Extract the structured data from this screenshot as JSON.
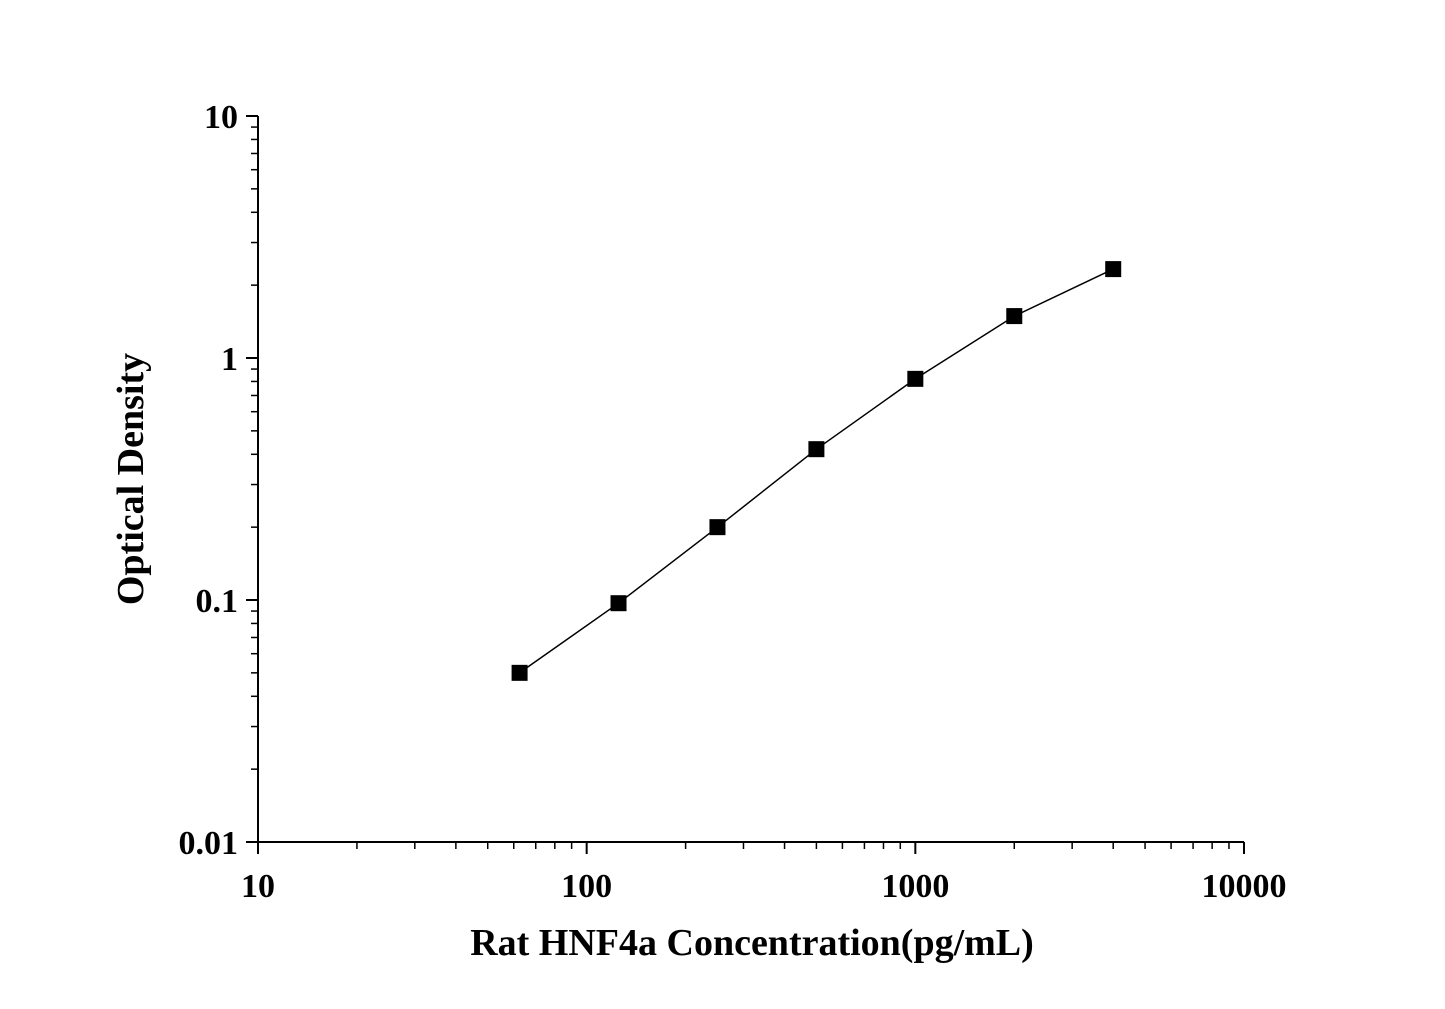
{
  "chart_data": {
    "type": "line",
    "title": "",
    "xlabel": "Rat HNF4a Concentration(pg/mL)",
    "ylabel": "Optical Density",
    "xscale": "log",
    "yscale": "log",
    "xlim": [
      10,
      10000
    ],
    "ylim": [
      0.01,
      10
    ],
    "xticks": [
      {
        "value": 10,
        "label": "10"
      },
      {
        "value": 100,
        "label": "100"
      },
      {
        "value": 1000,
        "label": "1000"
      },
      {
        "value": 10000,
        "label": "10000"
      }
    ],
    "yticks": [
      {
        "value": 0.01,
        "label": "0.01"
      },
      {
        "value": 0.1,
        "label": "0.1"
      },
      {
        "value": 1,
        "label": "1"
      },
      {
        "value": 10,
        "label": "10"
      }
    ],
    "grid": false,
    "marker": "square",
    "color": "#000000",
    "series": [
      {
        "x": [
          62.5,
          125,
          250,
          500,
          1000,
          2000,
          4000
        ],
        "y": [
          0.05,
          0.097,
          0.2,
          0.42,
          0.82,
          1.49,
          2.33
        ]
      }
    ]
  }
}
